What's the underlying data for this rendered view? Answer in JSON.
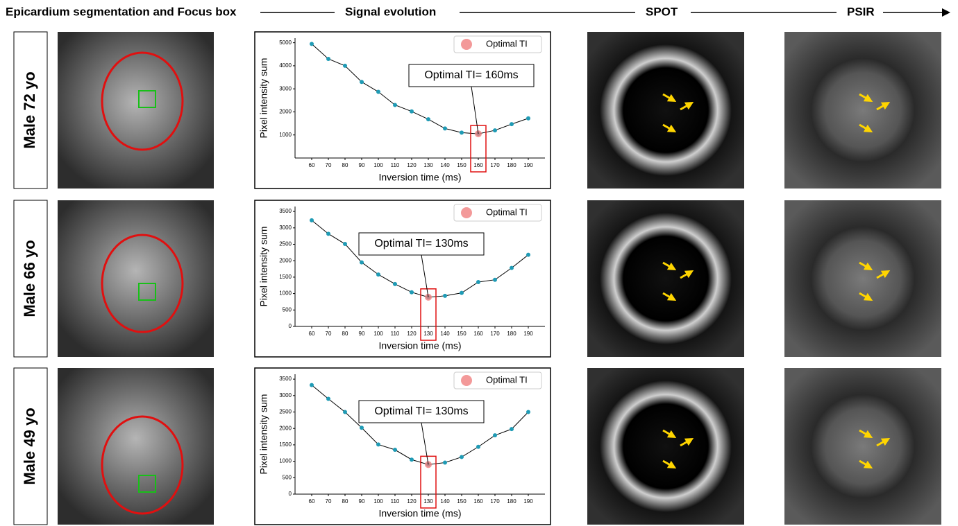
{
  "headers": [
    "Epicardium segmentation and Focus box",
    "Signal evolution",
    "SPOT",
    "PSIR"
  ],
  "rows": [
    {
      "label": "Male 72 yo"
    },
    {
      "label": "Male 66 yo"
    },
    {
      "label": "Male 49 yo"
    }
  ],
  "chart_data": [
    {
      "type": "line",
      "x_label": "Inversion time (ms)",
      "y_label": "Pixel intensity sum",
      "x": [
        60,
        70,
        80,
        90,
        100,
        110,
        120,
        130,
        140,
        150,
        160,
        170,
        180,
        190
      ],
      "xlim": [
        50,
        200
      ],
      "xticks": [
        60,
        70,
        80,
        90,
        100,
        110,
        120,
        130,
        140,
        150,
        160,
        170,
        180,
        190
      ],
      "ylim": [
        0,
        5200
      ],
      "yticks": [
        1000,
        2000,
        3000,
        4000,
        5000
      ],
      "series": [
        {
          "color": "#1f9bb5",
          "line_color": "#000000",
          "values": [
            4950,
            4300,
            4000,
            3300,
            2870,
            2300,
            2020,
            1680,
            1280,
            1100,
            1050,
            1200,
            1470,
            1720
          ]
        }
      ],
      "optimal": {
        "name": "Optimal TI",
        "x": 160,
        "y": 1050,
        "annotation": "Optimal TI= 160ms",
        "color": "#f07f7f"
      }
    },
    {
      "type": "line",
      "x_label": "Inversion time (ms)",
      "y_label": "Pixel intensity sum",
      "x": [
        60,
        70,
        80,
        90,
        100,
        110,
        120,
        130,
        140,
        150,
        160,
        170,
        180,
        190
      ],
      "xlim": [
        50,
        200
      ],
      "xticks": [
        60,
        70,
        80,
        90,
        100,
        110,
        120,
        130,
        140,
        150,
        160,
        170,
        180,
        190
      ],
      "ylim": [
        0,
        3650
      ],
      "yticks": [
        0,
        500,
        1000,
        1500,
        2000,
        2500,
        3000,
        3500
      ],
      "series": [
        {
          "color": "#1f9bb5",
          "line_color": "#000000",
          "values": [
            3230,
            2820,
            2510,
            1950,
            1580,
            1290,
            1040,
            890,
            930,
            1020,
            1350,
            1420,
            1780,
            2180
          ]
        }
      ],
      "optimal": {
        "name": "Optimal TI",
        "x": 130,
        "y": 890,
        "annotation": "Optimal TI= 130ms",
        "color": "#f07f7f"
      }
    },
    {
      "type": "line",
      "x_label": "Inversion time (ms)",
      "y_label": "Pixel intensity sum",
      "x": [
        60,
        70,
        80,
        90,
        100,
        110,
        120,
        130,
        140,
        150,
        160,
        170,
        180,
        190
      ],
      "xlim": [
        50,
        200
      ],
      "xticks": [
        60,
        70,
        80,
        90,
        100,
        110,
        120,
        130,
        140,
        150,
        160,
        170,
        180,
        190
      ],
      "ylim": [
        0,
        3650
      ],
      "yticks": [
        0,
        500,
        1000,
        1500,
        2000,
        2500,
        3000,
        3500
      ],
      "series": [
        {
          "color": "#1f9bb5",
          "line_color": "#000000",
          "values": [
            3320,
            2900,
            2500,
            2020,
            1510,
            1350,
            1050,
            900,
            960,
            1130,
            1440,
            1790,
            1980,
            2500
          ]
        }
      ],
      "optimal": {
        "name": "Optimal TI",
        "x": 130,
        "y": 900,
        "annotation": "Optimal TI= 130ms",
        "color": "#f07f7f"
      }
    }
  ]
}
